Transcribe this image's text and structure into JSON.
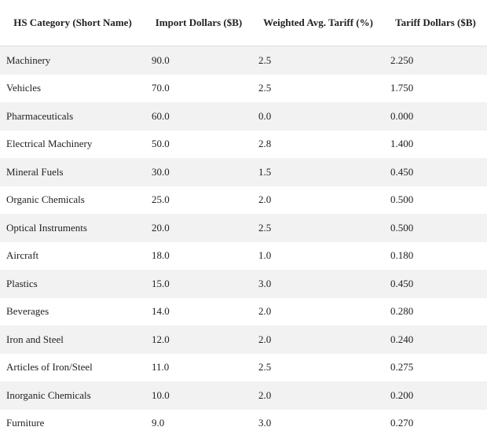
{
  "table": {
    "header": [
      "HS Category (Short Name)",
      "Import Dollars ($B)",
      "Weighted Avg. Tariff (%)",
      "Tariff Dollars ($B)"
    ],
    "rows": [
      [
        "Machinery",
        "90.0",
        "2.5",
        "2.250"
      ],
      [
        "Vehicles",
        "70.0",
        "2.5",
        "1.750"
      ],
      [
        "Pharmaceuticals",
        "60.0",
        "0.0",
        "0.000"
      ],
      [
        "Electrical Machinery",
        "50.0",
        "2.8",
        "1.400"
      ],
      [
        "Mineral Fuels",
        "30.0",
        "1.5",
        "0.450"
      ],
      [
        "Organic Chemicals",
        "25.0",
        "2.0",
        "0.500"
      ],
      [
        "Optical Instruments",
        "20.0",
        "2.5",
        "0.500"
      ],
      [
        "Aircraft",
        "18.0",
        "1.0",
        "0.180"
      ],
      [
        "Plastics",
        "15.0",
        "3.0",
        "0.450"
      ],
      [
        "Beverages",
        "14.0",
        "2.0",
        "0.280"
      ],
      [
        "Iron and Steel",
        "12.0",
        "2.0",
        "0.240"
      ],
      [
        "Articles of Iron/Steel",
        "11.0",
        "2.5",
        "0.275"
      ],
      [
        "Inorganic Chemicals",
        "10.0",
        "2.0",
        "0.200"
      ],
      [
        "Furniture",
        "9.0",
        "3.0",
        "0.270"
      ]
    ]
  }
}
